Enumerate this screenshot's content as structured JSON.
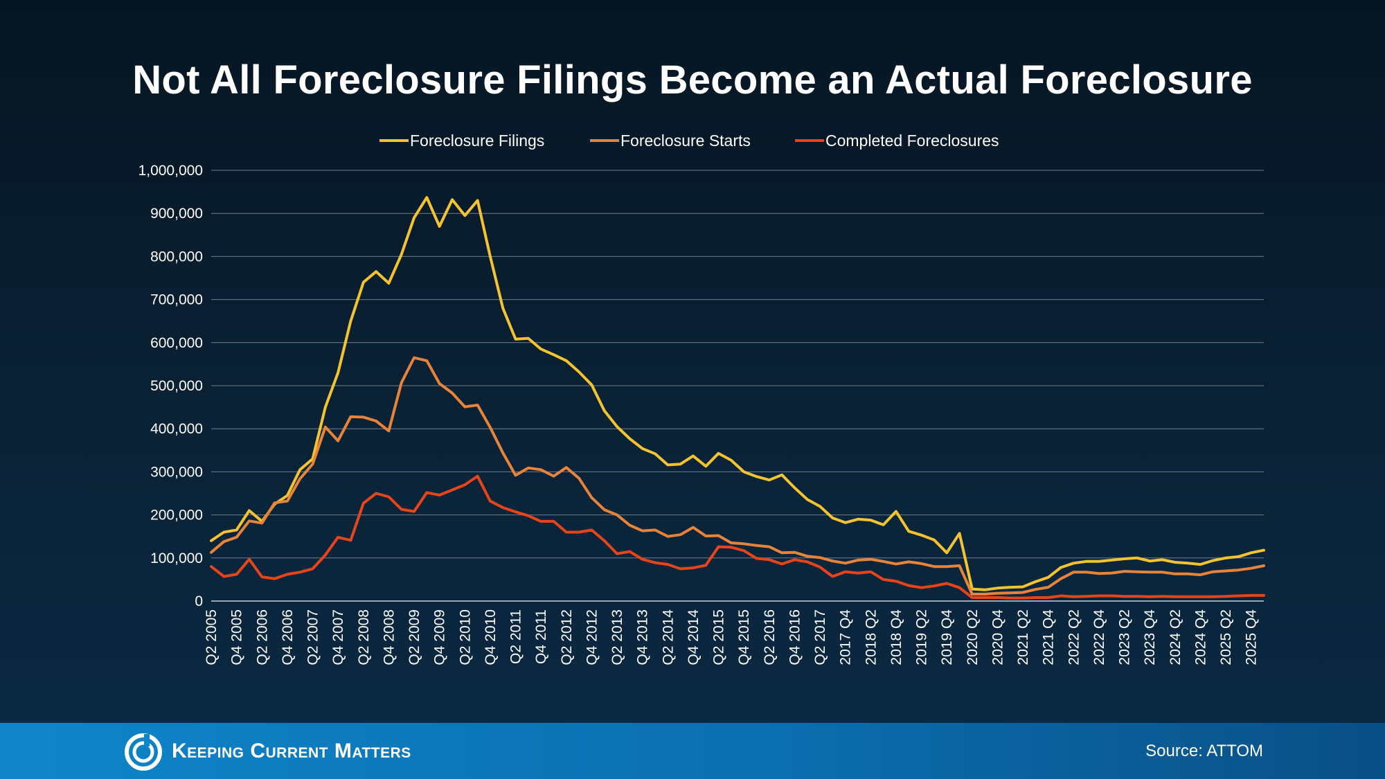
{
  "header": {
    "title": "Not All Foreclosure Filings Become an Actual Foreclosure"
  },
  "footer": {
    "brand": "Keeping Current Matters",
    "source": "Source: ATTOM"
  },
  "colors": {
    "filings": "#f4c430",
    "starts": "#e8833a",
    "completed": "#e8441a",
    "grid": "#6f7f8e"
  },
  "chart_data": {
    "type": "line",
    "title": "Not All Foreclosure Filings Become an Actual Foreclosure",
    "ylim": [
      0,
      1000000
    ],
    "yticks": [
      "0",
      "100,000",
      "200,000",
      "300,000",
      "400,000",
      "500,000",
      "600,000",
      "700,000",
      "800,000",
      "900,000",
      "1,000,000"
    ],
    "grid": true,
    "legend_position": "top-center",
    "x_tick_labels": [
      "Q2 2005",
      "Q4 2005",
      "Q2 2006",
      "Q4 2006",
      "Q2 2007",
      "Q4 2007",
      "Q2 2008",
      "Q4 2008",
      "Q2 2009",
      "Q4 2009",
      "Q2 2010",
      "Q4 2010",
      "Q2 2011",
      "Q4 2011",
      "Q2 2012",
      "Q4 2012",
      "Q2 2013",
      "Q4 2013",
      "Q2 2014",
      "Q4 2014",
      "Q2 2015",
      "Q4 2015",
      "Q2 2016",
      "Q4 2016",
      "Q2 2017",
      "2017 Q4",
      "2018 Q2",
      "2018 Q4",
      "2019 Q2",
      "2019 Q4",
      "2020 Q2",
      "2020 Q4",
      "2021 Q2",
      "2021 Q4",
      "2022 Q2",
      "2022 Q4",
      "2023 Q2",
      "2023 Q4",
      "2024 Q2",
      "2024 Q4",
      "2025 Q2",
      "2025 Q4"
    ],
    "series": [
      {
        "name": "Foreclosure Filings",
        "values": [
          140000,
          160000,
          165000,
          210000,
          185000,
          225000,
          245000,
          305000,
          330000,
          450000,
          530000,
          650000,
          740000,
          765000,
          738000,
          805000,
          890000,
          937000,
          870000,
          932000,
          895000,
          930000,
          800000,
          680000,
          608000,
          610000,
          585000,
          572000,
          558000,
          532000,
          502000,
          442000,
          405000,
          377000,
          354000,
          342000,
          316000,
          318000,
          337000,
          313000,
          343000,
          327000,
          300000,
          289000,
          281000,
          293000,
          263000,
          236000,
          220000,
          193000,
          182000,
          190000,
          188000,
          177000,
          208000,
          162000,
          153000,
          142000,
          112000,
          157000,
          28000,
          26000,
          30000,
          32000,
          33000,
          45000,
          55000,
          78000,
          88000,
          92000,
          92000,
          95000,
          98000,
          100000,
          93000,
          96000,
          90000,
          88000,
          85000,
          94000,
          100000,
          103000,
          112000,
          118000
        ]
      },
      {
        "name": "Foreclosure Starts",
        "values": [
          113000,
          138000,
          148000,
          186000,
          181000,
          228000,
          232000,
          284000,
          318000,
          404000,
          372000,
          428000,
          427000,
          418000,
          395000,
          507000,
          565000,
          558000,
          505000,
          483000,
          451000,
          455000,
          403000,
          344000,
          292000,
          309000,
          305000,
          290000,
          310000,
          285000,
          240000,
          212000,
          200000,
          176000,
          163000,
          165000,
          150000,
          154000,
          171000,
          151000,
          152000,
          135000,
          133000,
          129000,
          126000,
          112000,
          113000,
          104000,
          101000,
          93000,
          88000,
          95000,
          97000,
          92000,
          86000,
          91000,
          87000,
          80000,
          80000,
          82000,
          16000,
          16000,
          18000,
          19000,
          20000,
          27000,
          32000,
          52000,
          67000,
          67000,
          64000,
          65000,
          69000,
          68000,
          67000,
          67000,
          63000,
          63000,
          61000,
          68000,
          70000,
          72000,
          76000,
          82000
        ]
      },
      {
        "name": "Completed Foreclosures",
        "values": [
          80000,
          57000,
          62000,
          97000,
          56000,
          52000,
          62000,
          67000,
          75000,
          107000,
          148000,
          141000,
          227000,
          250000,
          242000,
          213000,
          208000,
          252000,
          246000,
          258000,
          270000,
          290000,
          232000,
          217000,
          207000,
          198000,
          185000,
          185000,
          160000,
          160000,
          165000,
          140000,
          110000,
          115000,
          97000,
          89000,
          85000,
          75000,
          77000,
          83000,
          126000,
          125000,
          117000,
          99000,
          96000,
          86000,
          96000,
          91000,
          79000,
          57000,
          68000,
          65000,
          68000,
          50000,
          46000,
          36000,
          31000,
          35000,
          41000,
          31000,
          8000,
          8000,
          8000,
          7000,
          7000,
          8000,
          8000,
          12000,
          10000,
          11000,
          12000,
          12000,
          11000,
          11000,
          10000,
          11000,
          10000,
          10000,
          10000,
          10000,
          11000,
          12000,
          13000,
          13000
        ]
      }
    ]
  }
}
